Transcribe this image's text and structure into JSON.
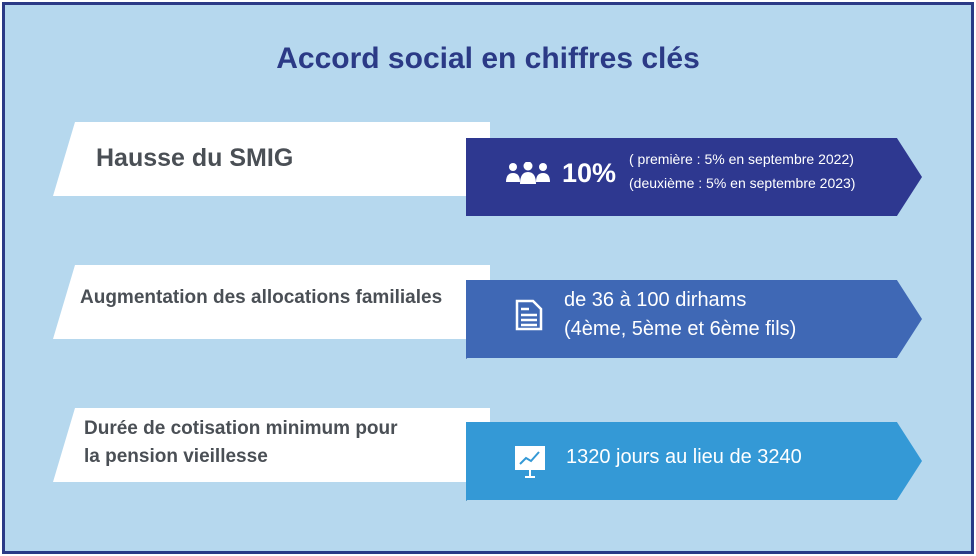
{
  "title": "Accord social en chiffres clés",
  "rows": [
    {
      "label": "Hausse du SMIG",
      "value": "10%",
      "detail_1": "( première : 5% en septembre 2022)",
      "detail_2": "(deuxième : 5% en septembre 2023)",
      "icon": "people-group-icon",
      "color": "#2e3890"
    },
    {
      "label": "Augmentation des allocations familiales",
      "detail_1": "de 36 à 100 dirhams",
      "detail_2": "(4ème, 5ème et 6ème fils)",
      "icon": "document-icon",
      "color": "#3f68b5"
    },
    {
      "label_1": "Durée de cotisation minimum pour",
      "label_2": "la pension vieillesse",
      "detail_1": "1320 jours au lieu de 3240",
      "icon": "chart-presentation-icon",
      "color": "#3499d6"
    }
  ]
}
